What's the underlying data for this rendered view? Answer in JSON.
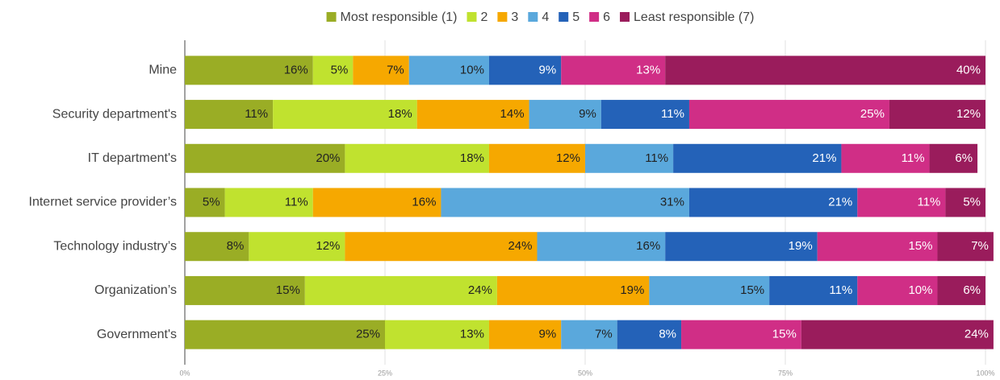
{
  "chart_data": {
    "type": "stacked-bar-horizontal",
    "categories": [
      "Mine",
      "Security department's",
      "IT department's",
      "Internet service provider’s",
      "Technology industry’s",
      "Organization’s",
      "Government's"
    ],
    "series": [
      {
        "name": "Most responsible (1)",
        "color": "#9aad25",
        "values": [
          16,
          11,
          20,
          5,
          8,
          15,
          25
        ],
        "value_labels": [
          "16%",
          "11%",
          "20%",
          "5%",
          "8%",
          "15%",
          "25%"
        ]
      },
      {
        "name": "2",
        "color": "#c0e22f",
        "values": [
          5,
          18,
          18,
          11,
          12,
          24,
          13
        ],
        "value_labels": [
          "5%",
          "18%",
          "18%",
          "11%",
          "12%",
          "24%",
          "13%"
        ]
      },
      {
        "name": "3",
        "color": "#f6a800",
        "values": [
          7,
          14,
          12,
          16,
          24,
          19,
          9
        ],
        "value_labels": [
          "7%",
          "14%",
          "12%",
          "16%",
          "24%",
          "19%",
          "9%"
        ]
      },
      {
        "name": "4",
        "color": "#5aa8dc",
        "values": [
          10,
          9,
          11,
          31,
          16,
          15,
          7
        ],
        "value_labels": [
          "10%",
          "9%",
          "11%",
          "31%",
          "16%",
          "15%",
          "7%"
        ]
      },
      {
        "name": "5",
        "color": "#2462b8",
        "values": [
          9,
          11,
          21,
          21,
          19,
          11,
          8
        ],
        "value_labels": [
          "9%",
          "11%",
          "21%",
          "21%",
          "19%",
          "11%",
          "8%"
        ]
      },
      {
        "name": "6",
        "color": "#d02e86",
        "values": [
          13,
          25,
          11,
          11,
          15,
          10,
          15
        ],
        "value_labels": [
          "13%",
          "25%",
          "11%",
          "11%",
          "15%",
          "10%",
          "15%"
        ]
      },
      {
        "name": "Least responsible (7)",
        "color": "#9a1c5c",
        "values": [
          40,
          12,
          6,
          5,
          7,
          6,
          24
        ],
        "value_labels": [
          "40%",
          "12%",
          "6%",
          "5%",
          "7%",
          "6%",
          "24%"
        ]
      }
    ],
    "xlim": [
      0,
      100
    ],
    "xticks": [
      {
        "value": 0,
        "label": "0%"
      },
      {
        "value": 25,
        "label": "25%"
      },
      {
        "value": 50,
        "label": "50%"
      },
      {
        "value": 75,
        "label": "75%"
      },
      {
        "value": 100,
        "label": "100%"
      }
    ],
    "grid": true,
    "legend": "top"
  }
}
